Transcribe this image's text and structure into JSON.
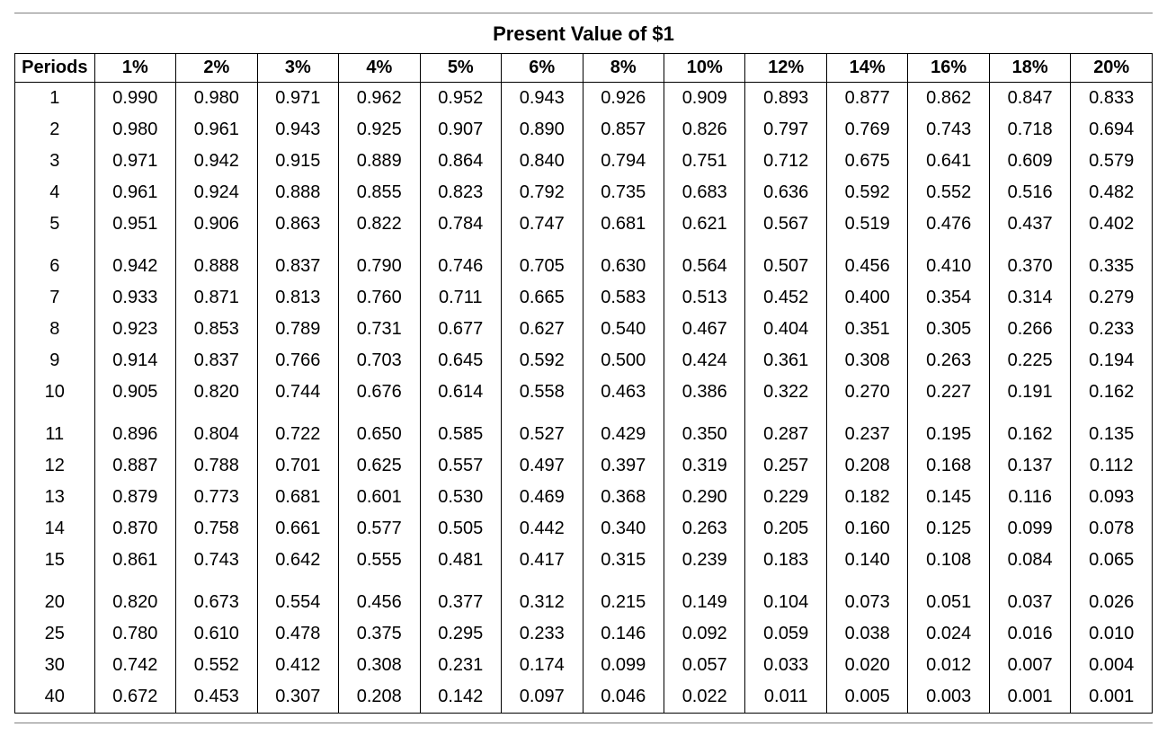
{
  "title": "Present Value of $1",
  "columns": [
    "Periods",
    "1%",
    "2%",
    "3%",
    "4%",
    "5%",
    "6%",
    "8%",
    "10%",
    "12%",
    "14%",
    "16%",
    "18%",
    "20%"
  ],
  "groups": [
    [
      [
        "1",
        "0.990",
        "0.980",
        "0.971",
        "0.962",
        "0.952",
        "0.943",
        "0.926",
        "0.909",
        "0.893",
        "0.877",
        "0.862",
        "0.847",
        "0.833"
      ],
      [
        "2",
        "0.980",
        "0.961",
        "0.943",
        "0.925",
        "0.907",
        "0.890",
        "0.857",
        "0.826",
        "0.797",
        "0.769",
        "0.743",
        "0.718",
        "0.694"
      ],
      [
        "3",
        "0.971",
        "0.942",
        "0.915",
        "0.889",
        "0.864",
        "0.840",
        "0.794",
        "0.751",
        "0.712",
        "0.675",
        "0.641",
        "0.609",
        "0.579"
      ],
      [
        "4",
        "0.961",
        "0.924",
        "0.888",
        "0.855",
        "0.823",
        "0.792",
        "0.735",
        "0.683",
        "0.636",
        "0.592",
        "0.552",
        "0.516",
        "0.482"
      ],
      [
        "5",
        "0.951",
        "0.906",
        "0.863",
        "0.822",
        "0.784",
        "0.747",
        "0.681",
        "0.621",
        "0.567",
        "0.519",
        "0.476",
        "0.437",
        "0.402"
      ]
    ],
    [
      [
        "6",
        "0.942",
        "0.888",
        "0.837",
        "0.790",
        "0.746",
        "0.705",
        "0.630",
        "0.564",
        "0.507",
        "0.456",
        "0.410",
        "0.370",
        "0.335"
      ],
      [
        "7",
        "0.933",
        "0.871",
        "0.813",
        "0.760",
        "0.711",
        "0.665",
        "0.583",
        "0.513",
        "0.452",
        "0.400",
        "0.354",
        "0.314",
        "0.279"
      ],
      [
        "8",
        "0.923",
        "0.853",
        "0.789",
        "0.731",
        "0.677",
        "0.627",
        "0.540",
        "0.467",
        "0.404",
        "0.351",
        "0.305",
        "0.266",
        "0.233"
      ],
      [
        "9",
        "0.914",
        "0.837",
        "0.766",
        "0.703",
        "0.645",
        "0.592",
        "0.500",
        "0.424",
        "0.361",
        "0.308",
        "0.263",
        "0.225",
        "0.194"
      ],
      [
        "10",
        "0.905",
        "0.820",
        "0.744",
        "0.676",
        "0.614",
        "0.558",
        "0.463",
        "0.386",
        "0.322",
        "0.270",
        "0.227",
        "0.191",
        "0.162"
      ]
    ],
    [
      [
        "11",
        "0.896",
        "0.804",
        "0.722",
        "0.650",
        "0.585",
        "0.527",
        "0.429",
        "0.350",
        "0.287",
        "0.237",
        "0.195",
        "0.162",
        "0.135"
      ],
      [
        "12",
        "0.887",
        "0.788",
        "0.701",
        "0.625",
        "0.557",
        "0.497",
        "0.397",
        "0.319",
        "0.257",
        "0.208",
        "0.168",
        "0.137",
        "0.112"
      ],
      [
        "13",
        "0.879",
        "0.773",
        "0.681",
        "0.601",
        "0.530",
        "0.469",
        "0.368",
        "0.290",
        "0.229",
        "0.182",
        "0.145",
        "0.116",
        "0.093"
      ],
      [
        "14",
        "0.870",
        "0.758",
        "0.661",
        "0.577",
        "0.505",
        "0.442",
        "0.340",
        "0.263",
        "0.205",
        "0.160",
        "0.125",
        "0.099",
        "0.078"
      ],
      [
        "15",
        "0.861",
        "0.743",
        "0.642",
        "0.555",
        "0.481",
        "0.417",
        "0.315",
        "0.239",
        "0.183",
        "0.140",
        "0.108",
        "0.084",
        "0.065"
      ]
    ],
    [
      [
        "20",
        "0.820",
        "0.673",
        "0.554",
        "0.456",
        "0.377",
        "0.312",
        "0.215",
        "0.149",
        "0.104",
        "0.073",
        "0.051",
        "0.037",
        "0.026"
      ],
      [
        "25",
        "0.780",
        "0.610",
        "0.478",
        "0.375",
        "0.295",
        "0.233",
        "0.146",
        "0.092",
        "0.059",
        "0.038",
        "0.024",
        "0.016",
        "0.010"
      ],
      [
        "30",
        "0.742",
        "0.552",
        "0.412",
        "0.308",
        "0.231",
        "0.174",
        "0.099",
        "0.057",
        "0.033",
        "0.020",
        "0.012",
        "0.007",
        "0.004"
      ],
      [
        "40",
        "0.672",
        "0.453",
        "0.307",
        "0.208",
        "0.142",
        "0.097",
        "0.046",
        "0.022",
        "0.011",
        "0.005",
        "0.003",
        "0.001",
        "0.001"
      ]
    ]
  ],
  "style": {
    "font_family": "Arial",
    "title_fontsize": 22,
    "header_fontsize": 20,
    "cell_fontsize": 20,
    "border_color": "#000000",
    "outer_rule_color": "#808080",
    "background_color": "#ffffff",
    "text_color": "#000000",
    "col_widths_percent": {
      "periods": 7.0,
      "rate": 7.15
    }
  }
}
